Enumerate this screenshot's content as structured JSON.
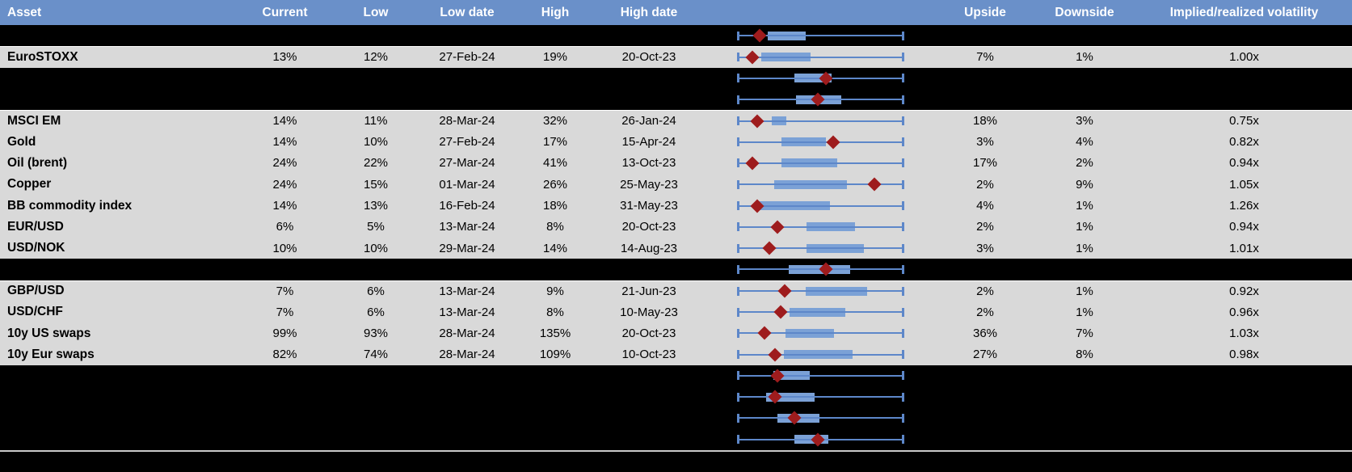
{
  "colors": {
    "header-bg": "#6a90c9",
    "row-gray": "#d9d9d9",
    "line-blue": "#5d87c9",
    "box-blue": "#7ba1d6",
    "marker-red": "#9e1c1d",
    "divider-gray": "#c9c9c9"
  },
  "table": {
    "columns": [
      {
        "key": "asset",
        "label": "Asset"
      },
      {
        "key": "current",
        "label": "Current"
      },
      {
        "key": "low",
        "label": "Low"
      },
      {
        "key": "low_date",
        "label": "Low date"
      },
      {
        "key": "high",
        "label": "High"
      },
      {
        "key": "high_date",
        "label": "High date"
      },
      {
        "key": "plot",
        "label": ""
      },
      {
        "key": "upside",
        "label": "Upside"
      },
      {
        "key": "downside",
        "label": "Downside"
      },
      {
        "key": "ratio",
        "label": "Implied/realized volatility"
      }
    ],
    "rows": [
      {
        "type": "hidden"
      },
      {
        "type": "asset",
        "sep": true,
        "asset": "EuroSTOXX",
        "current": "13%",
        "low": "12%",
        "low_date": "27-Feb-24",
        "high": "19%",
        "high_date": "20-Oct-23",
        "upside": "7%",
        "downside": "1%",
        "ratio": "1.00x"
      },
      {
        "type": "hidden"
      },
      {
        "type": "hidden"
      },
      {
        "type": "asset",
        "sep": true,
        "asset": "MSCI EM",
        "current": "14%",
        "low": "11%",
        "low_date": "28-Mar-24",
        "high": "32%",
        "high_date": "26-Jan-24",
        "upside": "18%",
        "downside": "3%",
        "ratio": "0.75x"
      },
      {
        "type": "asset",
        "asset": "Gold",
        "current": "14%",
        "low": "10%",
        "low_date": "27-Feb-24",
        "high": "17%",
        "high_date": "15-Apr-24",
        "upside": "3%",
        "downside": "4%",
        "ratio": "0.82x"
      },
      {
        "type": "asset",
        "asset": "Oil (brent)",
        "current": "24%",
        "low": "22%",
        "low_date": "27-Mar-24",
        "high": "41%",
        "high_date": "13-Oct-23",
        "upside": "17%",
        "downside": "2%",
        "ratio": "0.94x"
      },
      {
        "type": "asset",
        "asset": "Copper",
        "current": "24%",
        "low": "15%",
        "low_date": "01-Mar-24",
        "high": "26%",
        "high_date": "25-May-23",
        "upside": "2%",
        "downside": "9%",
        "ratio": "1.05x"
      },
      {
        "type": "asset",
        "asset": "BB commodity index",
        "current": "14%",
        "low": "13%",
        "low_date": "16-Feb-24",
        "high": "18%",
        "high_date": "31-May-23",
        "upside": "4%",
        "downside": "1%",
        "ratio": "1.26x"
      },
      {
        "type": "asset",
        "asset": "EUR/USD",
        "current": "6%",
        "low": "5%",
        "low_date": "13-Mar-24",
        "high": "8%",
        "high_date": "20-Oct-23",
        "upside": "2%",
        "downside": "1%",
        "ratio": "0.94x"
      },
      {
        "type": "asset",
        "asset": "USD/NOK",
        "current": "10%",
        "low": "10%",
        "low_date": "29-Mar-24",
        "high": "14%",
        "high_date": "14-Aug-23",
        "upside": "3%",
        "downside": "1%",
        "ratio": "1.01x"
      },
      {
        "type": "hidden"
      },
      {
        "type": "asset",
        "sep": true,
        "asset": "GBP/USD",
        "current": "7%",
        "low": "6%",
        "low_date": "13-Mar-24",
        "high": "9%",
        "high_date": "21-Jun-23",
        "upside": "2%",
        "downside": "1%",
        "ratio": "0.92x"
      },
      {
        "type": "asset",
        "asset": "USD/CHF",
        "current": "7%",
        "low": "6%",
        "low_date": "13-Mar-24",
        "high": "8%",
        "high_date": "10-May-23",
        "upside": "2%",
        "downside": "1%",
        "ratio": "0.96x"
      },
      {
        "type": "asset",
        "asset": "10y US swaps",
        "current": "99%",
        "low": "93%",
        "low_date": "28-Mar-24",
        "high": "135%",
        "high_date": "20-Oct-23",
        "upside": "36%",
        "downside": "7%",
        "ratio": "1.03x"
      },
      {
        "type": "asset",
        "asset": "10y Eur swaps",
        "current": "82%",
        "low": "74%",
        "low_date": "28-Mar-24",
        "high": "109%",
        "high_date": "10-Oct-23",
        "upside": "27%",
        "downside": "8%",
        "ratio": "0.98x"
      },
      {
        "type": "hidden"
      },
      {
        "type": "hidden"
      },
      {
        "type": "hidden"
      },
      {
        "type": "hidden"
      }
    ]
  },
  "chart_data": {
    "type": "boxplot",
    "orientation": "horizontal",
    "note": "One range plot per table row. Whiskers span the full 1y vol range (min to max); blue box = interquartile-style range; red diamond = current implied vol. Positions in percent of whisker span (0 = left whisker end, 100 = right whisker end). Rows align by index with table.rows; hidden rows are blacked-out assets whose plots remain visible.",
    "rows": [
      {
        "label": "(hidden)",
        "box_pct": [
          18.0,
          40.8
        ],
        "marker_pct": 13.2
      },
      {
        "label": "EuroSTOXX",
        "box_pct": [
          14.0,
          44.0
        ],
        "marker_pct": 8.8
      },
      {
        "label": "(hidden)",
        "box_pct": [
          34.3,
          56.6
        ],
        "marker_pct": 53.2
      },
      {
        "label": "(hidden)",
        "box_pct": [
          35.1,
          62.4
        ],
        "marker_pct": 48.3
      },
      {
        "label": "MSCI EM",
        "box_pct": [
          20.5,
          29.4
        ],
        "marker_pct": 11.9
      },
      {
        "label": "Gold",
        "box_pct": [
          26.3,
          53.3
        ],
        "marker_pct": 57.4
      },
      {
        "label": "Oil (brent)",
        "box_pct": [
          26.3,
          60.0
        ],
        "marker_pct": 8.6
      },
      {
        "label": "Copper",
        "box_pct": [
          22.1,
          65.7
        ],
        "marker_pct": 82.3
      },
      {
        "label": "BB commodity index",
        "box_pct": [
          12.8,
          55.6
        ],
        "marker_pct": 11.9
      },
      {
        "label": "EUR/USD",
        "box_pct": [
          41.6,
          70.9
        ],
        "marker_pct": 24.0
      },
      {
        "label": "USD/NOK",
        "box_pct": [
          41.3,
          76.1
        ],
        "marker_pct": 18.9
      },
      {
        "label": "(hidden)",
        "box_pct": [
          30.7,
          68.0
        ],
        "marker_pct": 53.0
      },
      {
        "label": "GBP/USD",
        "box_pct": [
          41.1,
          78.2
        ],
        "marker_pct": 28.3
      },
      {
        "label": "USD/CHF",
        "box_pct": [
          31.4,
          64.9
        ],
        "marker_pct": 25.7
      },
      {
        "label": "10y US swaps",
        "box_pct": [
          28.6,
          58.0
        ],
        "marker_pct": 16.0
      },
      {
        "label": "10y Eur swaps",
        "box_pct": [
          27.8,
          69.3
        ],
        "marker_pct": 22.3
      },
      {
        "label": "(hidden)",
        "box_pct": [
          21.6,
          43.3
        ],
        "marker_pct": 24.1
      },
      {
        "label": "(hidden)",
        "box_pct": [
          17.2,
          46.2
        ],
        "marker_pct": 22.4
      },
      {
        "label": "(hidden)",
        "box_pct": [
          23.8,
          49.4
        ],
        "marker_pct": 34.0
      },
      {
        "label": "(hidden)",
        "box_pct": [
          34.3,
          54.6
        ],
        "marker_pct": 48.1
      }
    ]
  }
}
